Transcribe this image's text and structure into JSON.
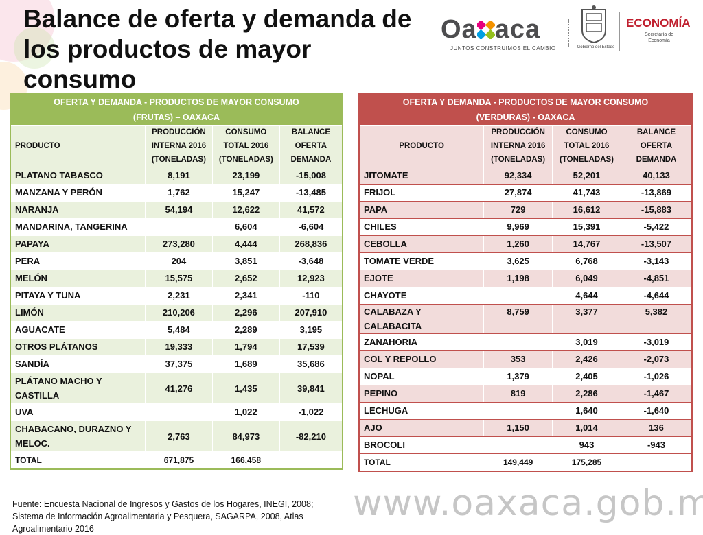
{
  "title": "Balance de oferta y demanda de los productos de mayor consumo",
  "logos": {
    "oaxaca": "Oaxaca",
    "oaxaca_tagline": "JUNTOS CONSTRUIMOS EL CAMBIO",
    "gobierno": "Gobierno del Estado",
    "economia": "ECONOMÍA",
    "economia_sub": "Secretaría de Economía"
  },
  "frutas": {
    "title_line1": "OFERTA Y DEMANDA - PRODUCTOS DE MAYOR CONSUMO",
    "title_line2": "(FRUTAS) – OAXACA",
    "col_producto": "PRODUCTO",
    "col_produccion": "PRODUCCIÓN INTERNA 2016 (TONELADAS)",
    "col_consumo": "CONSUMO TOTAL 2016 (TONELADAS)",
    "col_balance": "BALANCE OFERTA DEMANDA",
    "rows": [
      {
        "producto": "PLATANO TABASCO",
        "produccion": "8,191",
        "consumo": "23,199",
        "balance": "-15,008"
      },
      {
        "producto": "MANZANA Y PERÓN",
        "produccion": "1,762",
        "consumo": "15,247",
        "balance": "-13,485"
      },
      {
        "producto": "NARANJA",
        "produccion": "54,194",
        "consumo": "12,622",
        "balance": "41,572"
      },
      {
        "producto": "MANDARINA, TANGERINA",
        "produccion": "",
        "consumo": "6,604",
        "balance": "-6,604"
      },
      {
        "producto": "PAPAYA",
        "produccion": "273,280",
        "consumo": "4,444",
        "balance": "268,836"
      },
      {
        "producto": "PERA",
        "produccion": "204",
        "consumo": "3,851",
        "balance": "-3,648"
      },
      {
        "producto": "MELÓN",
        "produccion": "15,575",
        "consumo": "2,652",
        "balance": "12,923"
      },
      {
        "producto": "PITAYA Y TUNA",
        "produccion": "2,231",
        "consumo": "2,341",
        "balance": "-110"
      },
      {
        "producto": "LIMÓN",
        "produccion": "210,206",
        "consumo": "2,296",
        "balance": "207,910"
      },
      {
        "producto": "AGUACATE",
        "produccion": "5,484",
        "consumo": "2,289",
        "balance": "3,195"
      },
      {
        "producto": "OTROS PLÁTANOS",
        "produccion": "19,333",
        "consumo": "1,794",
        "balance": "17,539"
      },
      {
        "producto": "SANDÍA",
        "produccion": "37,375",
        "consumo": "1,689",
        "balance": "35,686"
      },
      {
        "producto": "PLÁTANO MACHO Y CASTILLA",
        "produccion": "41,276",
        "consumo": "1,435",
        "balance": "39,841"
      },
      {
        "producto": "UVA",
        "produccion": "",
        "consumo": "1,022",
        "balance": "-1,022"
      },
      {
        "producto": "CHABACANO, DURAZNO Y MELOC.",
        "produccion": "2,763",
        "consumo": "84,973",
        "balance": "-82,210"
      }
    ],
    "total": {
      "label": "TOTAL",
      "produccion": "671,875",
      "consumo": "166,458",
      "balance": ""
    }
  },
  "verduras": {
    "title_line1": "OFERTA Y DEMANDA - PRODUCTOS DE MAYOR CONSUMO",
    "title_line2": "(VERDURAS) - OAXACA",
    "col_producto": "PRODUCTO",
    "col_produccion": "PRODUCCIÓN INTERNA 2016 (TONELADAS)",
    "col_consumo": "CONSUMO TOTAL 2016 (TONELADAS)",
    "col_balance": "BALANCE OFERTA DEMANDA",
    "rows": [
      {
        "producto": "JITOMATE",
        "produccion": "92,334",
        "consumo": "52,201",
        "balance": "40,133"
      },
      {
        "producto": "FRIJOL",
        "produccion": "27,874",
        "consumo": "41,743",
        "balance": "-13,869"
      },
      {
        "producto": "PAPA",
        "produccion": "729",
        "consumo": "16,612",
        "balance": "-15,883"
      },
      {
        "producto": "CHILES",
        "produccion": "9,969",
        "consumo": "15,391",
        "balance": "-5,422"
      },
      {
        "producto": "CEBOLLA",
        "produccion": "1,260",
        "consumo": "14,767",
        "balance": "-13,507"
      },
      {
        "producto": "TOMATE VERDE",
        "produccion": "3,625",
        "consumo": "6,768",
        "balance": "-3,143"
      },
      {
        "producto": "EJOTE",
        "produccion": "1,198",
        "consumo": "6,049",
        "balance": "-4,851"
      },
      {
        "producto": "CHAYOTE",
        "produccion": "",
        "consumo": "4,644",
        "balance": "-4,644"
      },
      {
        "producto": "CALABAZA Y CALABACITA",
        "produccion": "8,759",
        "consumo": "3,377",
        "balance": "5,382"
      },
      {
        "producto": "ZANAHORIA",
        "produccion": "",
        "consumo": "3,019",
        "balance": "-3,019"
      },
      {
        "producto": "COL Y REPOLLO",
        "produccion": "353",
        "consumo": "2,426",
        "balance": "-2,073"
      },
      {
        "producto": "NOPAL",
        "produccion": "1,379",
        "consumo": "2,405",
        "balance": "-1,026"
      },
      {
        "producto": "PEPINO",
        "produccion": "819",
        "consumo": "2,286",
        "balance": "-1,467"
      },
      {
        "producto": "LECHUGA",
        "produccion": "",
        "consumo": "1,640",
        "balance": "-1,640"
      },
      {
        "producto": "AJO",
        "produccion": "1,150",
        "consumo": "1,014",
        "balance": "136"
      },
      {
        "producto": "BROCOLI",
        "produccion": "",
        "consumo": "943",
        "balance": "-943"
      }
    ],
    "total": {
      "label": "TOTAL",
      "produccion": "149,449",
      "consumo": "175,285",
      "balance": ""
    }
  },
  "fuente": "Fuente: Encuesta Nacional de Ingresos y Gastos de los Hogares, INEGI, 2008; Sistema de Información Agroalimentaria y Pesquera, SAGARPA, 2008, Atlas Agroalimentario 2016",
  "url": "www.oaxaca.gob.mx",
  "colors": {
    "frutas_accent": "#9bbb59",
    "verduras_accent": "#c0504d"
  }
}
